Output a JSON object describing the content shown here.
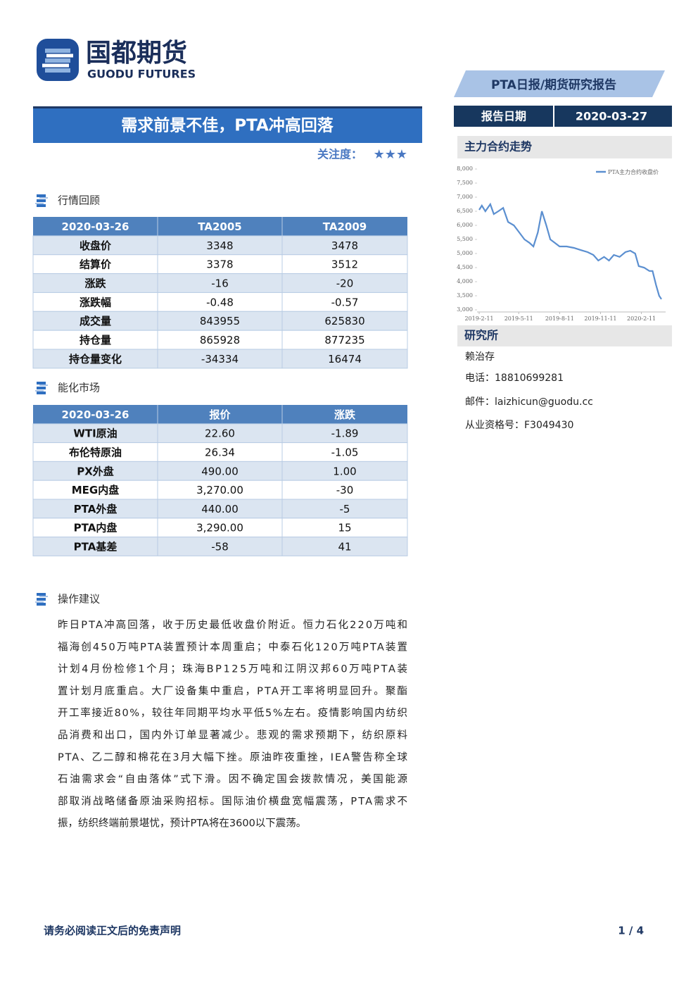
{
  "header": {
    "logo_cn": "国都期货",
    "logo_en": "GUODU FUTURES",
    "report_type": "PTA日报/期货研究报告",
    "date_label": "报告日期",
    "date": "2020-03-27"
  },
  "title": "需求前景不佳，PTA冲高回落",
  "attention": {
    "label": "关注度：",
    "stars": "★★★"
  },
  "market_review": {
    "heading": "行情回顾",
    "table": {
      "header": [
        "2020-03-26",
        "TA2005",
        "TA2009"
      ],
      "rows": [
        [
          "收盘价",
          "3348",
          "3478"
        ],
        [
          "结算价",
          "3378",
          "3512"
        ],
        [
          "涨跌",
          "-16",
          "-20"
        ],
        [
          "涨跌幅",
          "-0.48",
          "-0.57"
        ],
        [
          "成交量",
          "843955",
          "625830"
        ],
        [
          "持仓量",
          "865928",
          "877235"
        ],
        [
          "持仓量变化",
          "-34334",
          "16474"
        ]
      ]
    }
  },
  "energy_market": {
    "heading": "能化市场",
    "table": {
      "header": [
        "2020-03-26",
        "报价",
        "涨跌"
      ],
      "rows": [
        [
          "WTI原油",
          "22.60",
          "-1.89"
        ],
        [
          "布伦特原油",
          "26.34",
          "-1.05"
        ],
        [
          "PX外盘",
          "490.00",
          "1.00"
        ],
        [
          "MEG内盘",
          "3,270.00",
          "-30"
        ],
        [
          "PTA外盘",
          "440.00",
          "-5"
        ],
        [
          "PTA内盘",
          "3,290.00",
          "15"
        ],
        [
          "PTA基差",
          "-58",
          "41"
        ]
      ]
    }
  },
  "advice": {
    "heading": "操作建议",
    "lines": [
      "昨日PTA冲高回落，收于历史最低收盘价附近。恒力石化220万吨和",
      "福海创450万吨PTA装置预计本周重启；中泰石化120万吨PTA装置",
      "计划4月份检修1个月；珠海BP125万吨和江阴汉邦60万吨PTA装",
      "置计划月底重启。大厂设备集中重启，PTA开工率将明显回升。聚酯",
      "开工率接近80%，较往年同期平均水平低5%左右。疫情影响国内纺织",
      "品消费和出口，国内外订单显著减少。悲观的需求预期下，纺织原料",
      "PTA、乙二醇和棉花在3月大幅下挫。原油昨夜重挫，IEA警告称全球",
      "石油需求会“自由落体”式下滑。因不确定国会拨款情况，美国能源",
      "部取消战略储备原油采购招标。国际油价横盘宽幅震荡，PTA需求不",
      "振，纺织终端前景堪忧，预计PTA将在3600以下震荡。"
    ]
  },
  "sidebar": {
    "chart_heading": "主力合约走势",
    "institute_heading": "研究所",
    "analyst": "赖治存",
    "phone": "电话：18810699281",
    "email": "邮件：laizhicun@guodu.cc",
    "license": "从业资格号：F3049430"
  },
  "chart_data": {
    "type": "line",
    "x": [
      "2019-02-11",
      "2019-02-17",
      "2019-02-25",
      "2019-03-08",
      "2019-03-16",
      "2019-03-26",
      "2019-04-06",
      "2019-04-17",
      "2019-04-30",
      "2019-05-12",
      "2019-05-24",
      "2019-06-04",
      "2019-06-13",
      "2019-06-23",
      "2019-07-02",
      "2019-07-12",
      "2019-07-21",
      "2019-07-31",
      "2019-08-11",
      "2019-08-27",
      "2019-09-12",
      "2019-09-28",
      "2019-10-13",
      "2019-10-26",
      "2019-11-06",
      "2019-11-19",
      "2019-11-30",
      "2019-12-11",
      "2019-12-24",
      "2020-01-06",
      "2020-01-17",
      "2020-01-28",
      "2020-02-05",
      "2020-02-17",
      "2020-02-29",
      "2020-03-07",
      "2020-03-15",
      "2020-03-22",
      "2020-03-27"
    ],
    "series": [
      {
        "name": "PTA主力合约收盘价",
        "color": "#5b8fd0",
        "values": [
          6550,
          6700,
          6500,
          6750,
          6400,
          6500,
          6620,
          6120,
          6000,
          5750,
          5500,
          5380,
          5250,
          5750,
          6500,
          6000,
          5500,
          5380,
          5250,
          5250,
          5200,
          5120,
          5050,
          4950,
          4750,
          4880,
          4750,
          4950,
          4880,
          5050,
          5100,
          5000,
          4550,
          4500,
          4380,
          4380,
          3880,
          3500,
          3380
        ]
      }
    ],
    "xlim": [
      "2019-02-11",
      "2020-03-27"
    ],
    "xticks": [
      {
        "value": "2019-02-11",
        "label": "2019-2-11"
      },
      {
        "value": "2019-05-11",
        "label": "2019-5-11"
      },
      {
        "value": "2019-08-11",
        "label": "2019-8-11"
      },
      {
        "value": "2019-11-11",
        "label": "2019-11-11"
      },
      {
        "value": "2020-02-11",
        "label": "2020-2-11"
      }
    ],
    "ylim": [
      3000,
      8000
    ],
    "yticks": [
      {
        "value": 3000,
        "label": "3,000"
      },
      {
        "value": 3500,
        "label": "3,500"
      },
      {
        "value": 4000,
        "label": "4,000"
      },
      {
        "value": 4500,
        "label": "4,500"
      },
      {
        "value": 5000,
        "label": "5,000"
      },
      {
        "value": 5500,
        "label": "5,500"
      },
      {
        "value": 6000,
        "label": "6,000"
      },
      {
        "value": 6500,
        "label": "6,500"
      },
      {
        "value": 7000,
        "label": "7,000"
      },
      {
        "value": 7500,
        "label": "7,500"
      },
      {
        "value": 8000,
        "label": "8,000"
      }
    ]
  },
  "footer": {
    "disclaimer": "请务必阅读正文后的免责声明",
    "page": "1 / 4"
  }
}
